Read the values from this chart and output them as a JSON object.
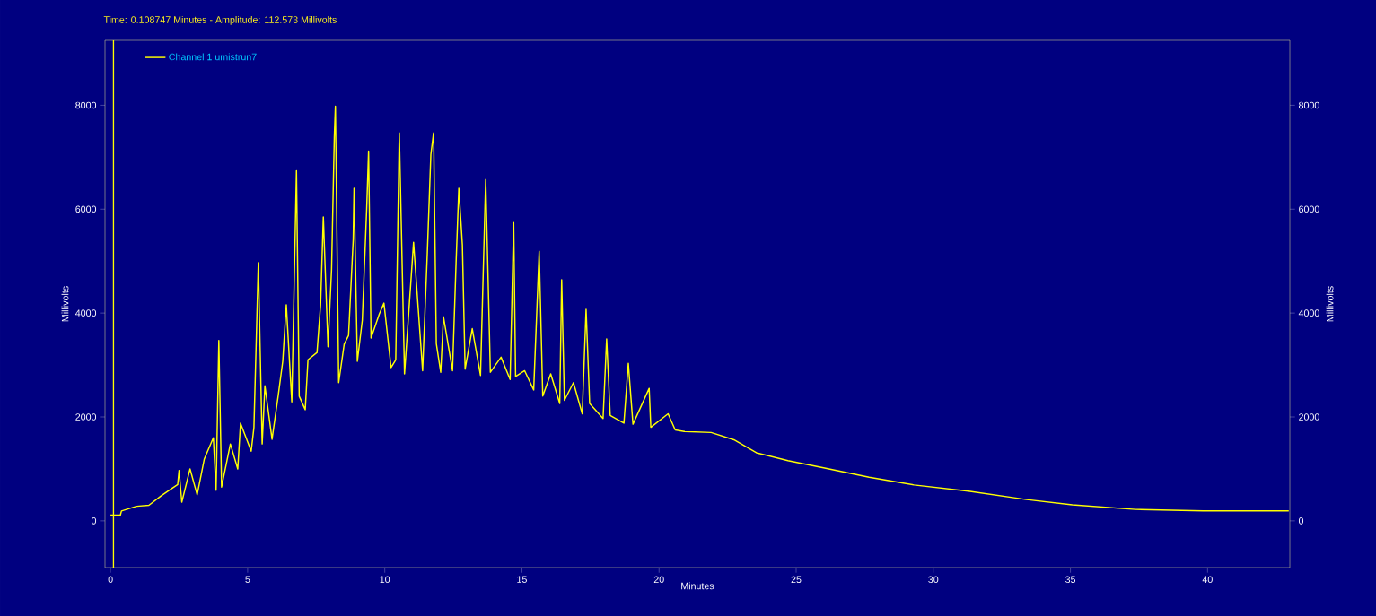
{
  "chart_data": {
    "type": "line",
    "title": "Time:  0.108747 Minutes - Amplitude:  112.573 Millivolts",
    "xlabel": "Minutes",
    "ylabel": "Millivolts",
    "y2label": "Millivolts",
    "xlim": [
      -0.2,
      43
    ],
    "xticks": [
      0,
      5,
      10,
      15,
      20,
      25,
      30,
      35,
      40
    ],
    "ylim": [
      -900,
      9250
    ],
    "yticks": [
      0,
      2000,
      4000,
      6000,
      8000
    ],
    "y2lim": [
      -900,
      9250
    ],
    "y2ticks": [
      0,
      2000,
      4000,
      6000,
      8000
    ],
    "legend": "top left",
    "ref_lines": [
      {
        "axis": "x",
        "value": 0.108747,
        "color": "#ffff00"
      }
    ],
    "x": [
      0,
      0.36,
      0.4,
      0.95,
      1.4,
      1.84,
      2.23,
      2.45,
      2.5,
      2.6,
      2.9,
      3.16,
      3.42,
      3.75,
      3.85,
      3.95,
      4.05,
      4.37,
      4.64,
      4.74,
      5.13,
      5.23,
      5.39,
      5.53,
      5.63,
      5.89,
      6.12,
      6.28,
      6.41,
      6.61,
      6.78,
      6.88,
      7.1,
      7.2,
      7.53,
      7.66,
      7.76,
      7.93,
      8.06,
      8.16,
      8.2,
      8.32,
      8.52,
      8.68,
      8.85,
      8.88,
      9.0,
      9.18,
      9.34,
      9.41,
      9.5,
      9.8,
      9.97,
      10.23,
      10.4,
      10.53,
      10.72,
      11.05,
      11.38,
      11.55,
      11.68,
      11.78,
      11.88,
      12.04,
      12.14,
      12.47,
      12.6,
      12.7,
      12.83,
      12.93,
      13.19,
      13.49,
      13.68,
      13.85,
      14.24,
      14.57,
      14.7,
      14.77,
      15.1,
      15.43,
      15.63,
      15.76,
      16.05,
      16.38,
      16.45,
      16.55,
      16.88,
      17.2,
      17.34,
      17.47,
      17.96,
      18.09,
      18.22,
      18.72,
      18.88,
      19.05,
      19.64,
      19.7,
      20.33,
      20.59,
      20.92,
      21.9,
      22.73,
      23.55,
      24.7,
      26.0,
      27.66,
      29.3,
      31.28,
      33.4,
      35.07,
      37.37,
      39.84,
      42.96
    ],
    "series": [
      {
        "name": "Channel 1 umistrun7",
        "color": "#ffff00",
        "values": [
          110,
          110,
          190,
          280,
          300,
          480,
          620,
          700,
          970,
          360,
          1000,
          500,
          1190,
          1600,
          590,
          3470,
          650,
          1480,
          1000,
          1880,
          1340,
          1800,
          4970,
          1480,
          2600,
          1570,
          2430,
          3070,
          4160,
          2290,
          6740,
          2400,
          2140,
          3100,
          3240,
          4160,
          5850,
          3350,
          4840,
          7380,
          7980,
          2660,
          3400,
          3570,
          5420,
          6400,
          3070,
          3860,
          6000,
          7120,
          3520,
          3980,
          4190,
          2950,
          3100,
          7470,
          2830,
          5360,
          2890,
          5140,
          7050,
          7470,
          3410,
          2860,
          3930,
          2890,
          4970,
          6400,
          5310,
          2920,
          3700,
          2800,
          6570,
          2860,
          3150,
          2720,
          5740,
          2780,
          2890,
          2520,
          5190,
          2400,
          2830,
          2260,
          4640,
          2320,
          2660,
          2060,
          4070,
          2260,
          1970,
          3500,
          2030,
          1880,
          3030,
          1860,
          2550,
          1800,
          2060,
          1750,
          1720,
          1700,
          1560,
          1310,
          1160,
          1020,
          840,
          690,
          570,
          410,
          310,
          220,
          190,
          190
        ]
      }
    ]
  }
}
